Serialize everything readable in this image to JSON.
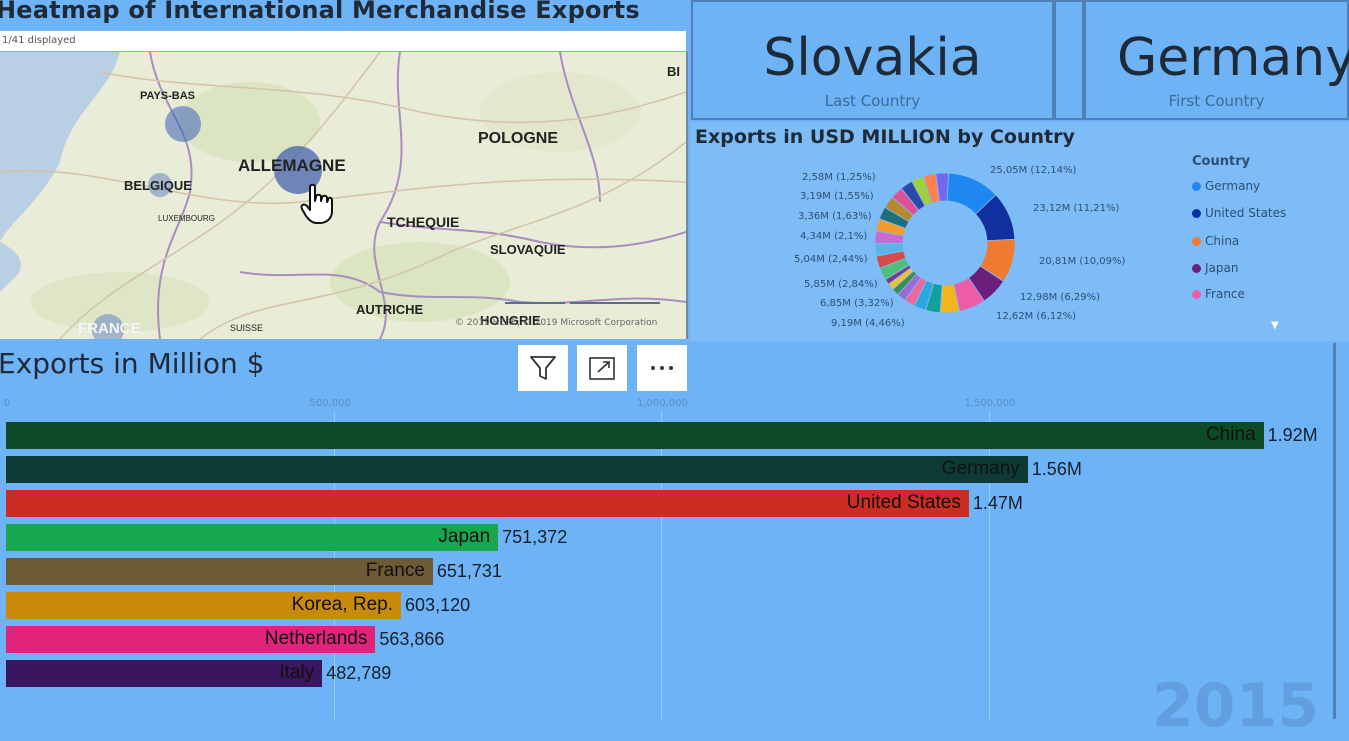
{
  "map": {
    "title": "Heatmap of International Merchandise Exports",
    "subtitle": "1/41 displayed",
    "labels": [
      "PAYS-BAS",
      "BELGIQUE",
      "ALLEMAGNE",
      "POLOGNE",
      "TCHEQUIE",
      "SLOVAQUIE",
      "AUTRICHE",
      "HONGRIE",
      "FRANCE",
      "SUISSE",
      "LUXEMBOURG",
      "BI"
    ],
    "credit": "© 2019 HERE, © 2019 Microsoft Corporation"
  },
  "kpis": [
    {
      "value": "Slovakia",
      "caption": "Last Country"
    },
    {
      "value": "Germany",
      "caption": "First Country"
    }
  ],
  "donut": {
    "title": "Exports in USD MILLION by Country",
    "slice_labels": [
      "25,05M (12,14%)",
      "23,12M (11,21%)",
      "20,81M (10,09%)",
      "12,98M (6,29%)",
      "12,62M (6,12%)",
      "9,19M (4,46%)",
      "6,85M (3,32%)",
      "5,85M (2,84%)",
      "5,04M (2,44%)",
      "4,34M (2,1%)",
      "3,36M (1,63%)",
      "3,19M (1,55%)",
      "2,58M (1,25%)"
    ],
    "legend_title": "Country",
    "legend": [
      {
        "name": "Germany",
        "color": "#1e88f0"
      },
      {
        "name": "United States",
        "color": "#1030a0"
      },
      {
        "name": "China",
        "color": "#f07a30"
      },
      {
        "name": "Japan",
        "color": "#6b1f7a"
      },
      {
        "name": "France",
        "color": "#ee5ca8"
      }
    ]
  },
  "bars": {
    "title": "Exports in Million $",
    "axis_ticks": [
      "0",
      "500,000",
      "1,000,000",
      "1,500,000"
    ],
    "rows": [
      {
        "name": "China",
        "value": 1920000,
        "label": "1.92M",
        "color": "#0d4a26"
      },
      {
        "name": "Germany",
        "value": 1560000,
        "label": "1.56M",
        "color": "#0e3a35"
      },
      {
        "name": "United States",
        "value": 1470000,
        "label": "1.47M",
        "color": "#cc2d22"
      },
      {
        "name": "Japan",
        "value": 751372,
        "label": "751,372",
        "color": "#17a84f"
      },
      {
        "name": "France",
        "value": 651731,
        "label": "651,731",
        "color": "#6e5a34"
      },
      {
        "name": "Korea, Rep.",
        "value": 603120,
        "label": "603,120",
        "color": "#c98a0a"
      },
      {
        "name": "Netherlands",
        "value": 563866,
        "label": "563,866",
        "color": "#e0247a"
      },
      {
        "name": "Italy",
        "value": 482789,
        "label": "482,789",
        "color": "#3a1660"
      }
    ],
    "year": "2015"
  },
  "donut_chart_data": {
    "type": "pie",
    "values": [
      12.14,
      11.21,
      10.09,
      6.29,
      6.12,
      4.46,
      3.32,
      2.84,
      2.44,
      2.1,
      1.63,
      1.55,
      1.25
    ]
  }
}
